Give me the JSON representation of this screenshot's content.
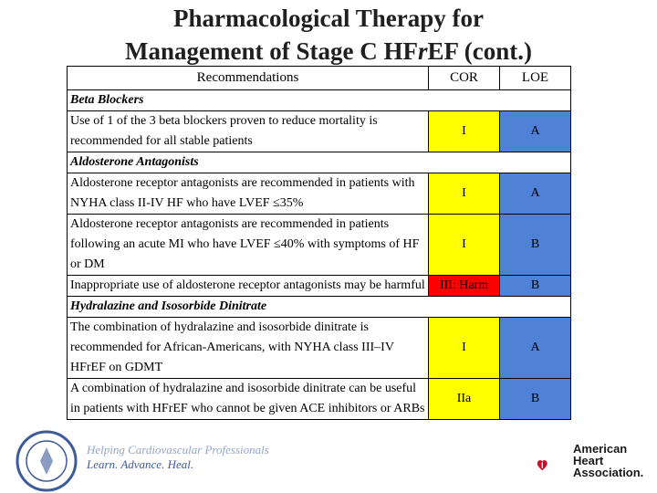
{
  "title": {
    "line1": "Pharmacological Therapy for",
    "line2_pre": "Management of Stage C HF",
    "line2_it": "r",
    "line2_post": "EF (cont.)"
  },
  "table": {
    "headers": [
      "Recommendations",
      "COR",
      "LOE"
    ],
    "sections": {
      "beta": "Beta Blockers",
      "aldo": "Aldosterone Antagonists",
      "hyd": "Hydralazine and Isosorbide Dinitrate"
    },
    "rows": [
      {
        "text": "Use of 1 of the 3 beta blockers proven to reduce mortality is recommended for all stable patients",
        "cor": "I",
        "loe": "A"
      },
      {
        "text": "Aldosterone receptor antagonists are recommended in patients with NYHA class II-IV HF who have LVEF ≤35%",
        "cor": "I",
        "loe": "A"
      },
      {
        "text": "Aldosterone receptor antagonists are recommended in patients following an acute MI who have LVEF ≤40% with symptoms of HF or DM",
        "cor": "I",
        "loe": "B"
      },
      {
        "text": "Inappropriate use of aldosterone receptor antagonists may be harmful",
        "cor": "III: Harm",
        "loe": "B"
      },
      {
        "text": "The combination of hydralazine and isosorbide dinitrate is recommended for African-Americans, with NYHA class III–IV HFrEF on GDMT",
        "cor": "I",
        "loe": "A"
      },
      {
        "text": "A combination of hydralazine and isosorbide dinitrate can be useful in patients with HFrEF who cannot be given ACE inhibitors or ARBs",
        "cor": "IIa",
        "loe": "B"
      }
    ]
  },
  "footer": {
    "acc_line1": "Helping Cardiovascular Professionals",
    "acc_line2": "Learn. Advance. Heal.",
    "aha_line1": "American",
    "aha_line2": "Heart",
    "aha_line3": "Association."
  },
  "colors": {
    "cor_I": "#ffff00",
    "cor_IIa": "#ffff00",
    "cor_III": "#ff0000",
    "loe": "#4f81d7"
  }
}
